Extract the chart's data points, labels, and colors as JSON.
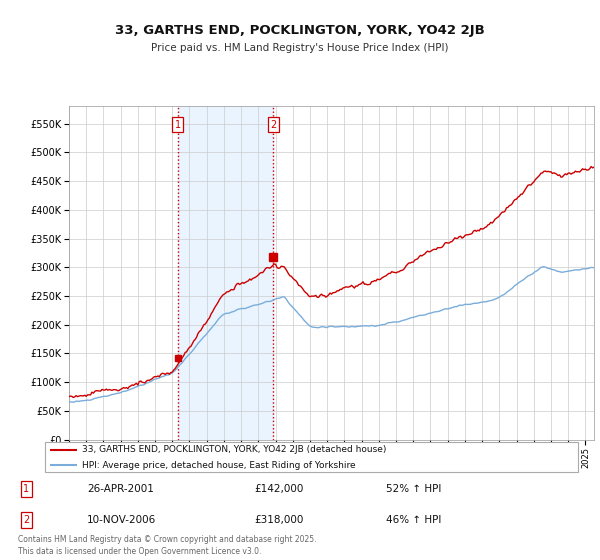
{
  "title": "33, GARTHS END, POCKLINGTON, YORK, YO42 2JB",
  "subtitle": "Price paid vs. HM Land Registry's House Price Index (HPI)",
  "sale1_date": "26-APR-2001",
  "sale1_price": 142000,
  "sale1_hpi_pct": "52% ↑ HPI",
  "sale2_date": "10-NOV-2006",
  "sale2_price": 318000,
  "sale2_hpi_pct": "46% ↑ HPI",
  "sale1_year": 2001.32,
  "sale2_year": 2006.86,
  "legend_line1": "33, GARTHS END, POCKLINGTON, YORK, YO42 2JB (detached house)",
  "legend_line2": "HPI: Average price, detached house, East Riding of Yorkshire",
  "footer": "Contains HM Land Registry data © Crown copyright and database right 2025.\nThis data is licensed under the Open Government Licence v3.0.",
  "line_color_red": "#cc0000",
  "line_color_blue": "#7aadda",
  "shade_color": "#ddeeff",
  "bg_color": "#ffffff",
  "grid_color": "#cccccc",
  "ylim": [
    0,
    580000
  ],
  "xlim_start": 1995.0,
  "xlim_end": 2025.5
}
